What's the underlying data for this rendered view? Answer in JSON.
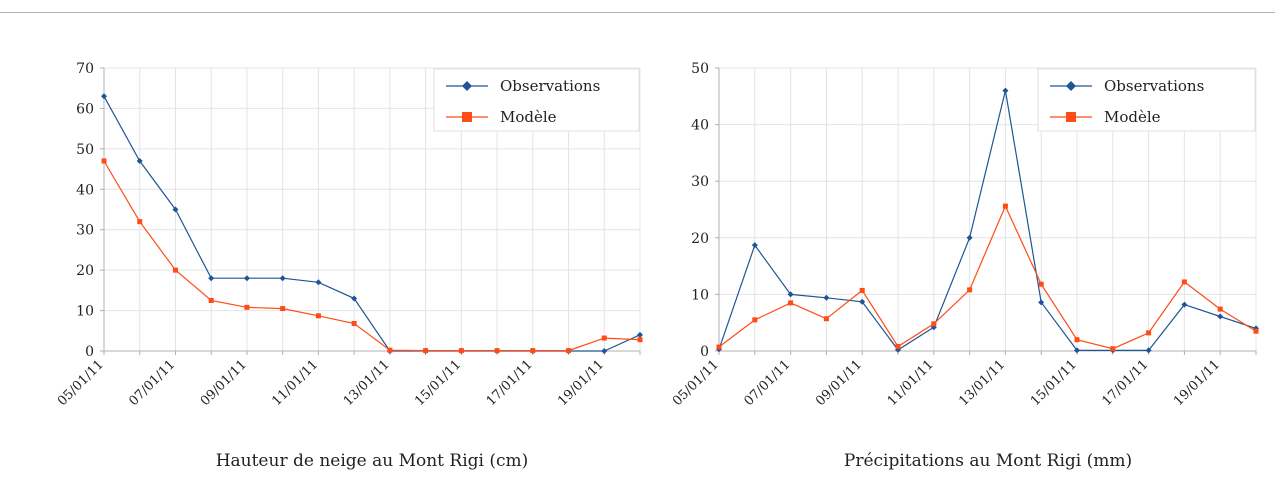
{
  "colors": {
    "observations": "#1f5597",
    "modele": "#ff4b16",
    "grid": "#e4e4e4",
    "axis": "#b0b0b0"
  },
  "chart_data": [
    {
      "type": "line",
      "caption": "Hauteur de neige au Mont Rigi (cm)",
      "x": [
        "05/01/11",
        "06/01/11",
        "07/01/11",
        "08/01/11",
        "09/01/11",
        "10/01/11",
        "11/01/11",
        "12/01/11",
        "13/01/11",
        "14/01/11",
        "15/01/11",
        "16/01/11",
        "17/01/11",
        "18/01/11",
        "19/01/11",
        "20/01/11"
      ],
      "x_tick_labels": [
        "05/01/11",
        "07/01/11",
        "09/01/11",
        "11/01/11",
        "13/01/11",
        "15/01/11",
        "17/01/11",
        "19/01/11"
      ],
      "ylim": [
        0,
        70
      ],
      "y_ticks": [
        0,
        10,
        20,
        30,
        40,
        50,
        60,
        70
      ],
      "grid": true,
      "legend_position": "top-right",
      "series": [
        {
          "name": "Observations",
          "values": [
            63,
            47,
            35,
            18,
            18,
            18,
            17,
            13,
            0,
            0,
            0,
            0,
            0,
            0,
            0,
            4
          ]
        },
        {
          "name": "Modèle",
          "values": [
            47,
            32,
            20,
            12.5,
            10.8,
            10.5,
            8.7,
            6.8,
            0.2,
            0.1,
            0.1,
            0.1,
            0.1,
            0.1,
            3.2,
            2.8
          ]
        }
      ]
    },
    {
      "type": "line",
      "caption": "Précipitations au Mont Rigi (mm)",
      "x": [
        "05/01/11",
        "06/01/11",
        "07/01/11",
        "08/01/11",
        "09/01/11",
        "10/01/11",
        "11/01/11",
        "12/01/11",
        "13/01/11",
        "14/01/11",
        "15/01/11",
        "16/01/11",
        "17/01/11",
        "18/01/11",
        "19/01/11",
        "20/01/11"
      ],
      "x_tick_labels": [
        "05/01/11",
        "07/01/11",
        "09/01/11",
        "11/01/11",
        "13/01/11",
        "15/01/11",
        "17/01/11",
        "19/01/11"
      ],
      "ylim": [
        0,
        50
      ],
      "y_ticks": [
        0,
        10,
        20,
        30,
        40,
        50
      ],
      "grid": true,
      "legend_position": "top-right",
      "series": [
        {
          "name": "Observations",
          "values": [
            0.3,
            18.7,
            10,
            9.4,
            8.7,
            0.2,
            4.2,
            20,
            46,
            8.6,
            0.1,
            0.1,
            0.1,
            8.2,
            6.1,
            4
          ]
        },
        {
          "name": "Modèle",
          "values": [
            0.7,
            5.5,
            8.5,
            5.7,
            10.7,
            0.8,
            4.8,
            10.8,
            25.6,
            11.8,
            2,
            0.4,
            3.2,
            12.2,
            7.4,
            3.5
          ]
        }
      ]
    }
  ]
}
